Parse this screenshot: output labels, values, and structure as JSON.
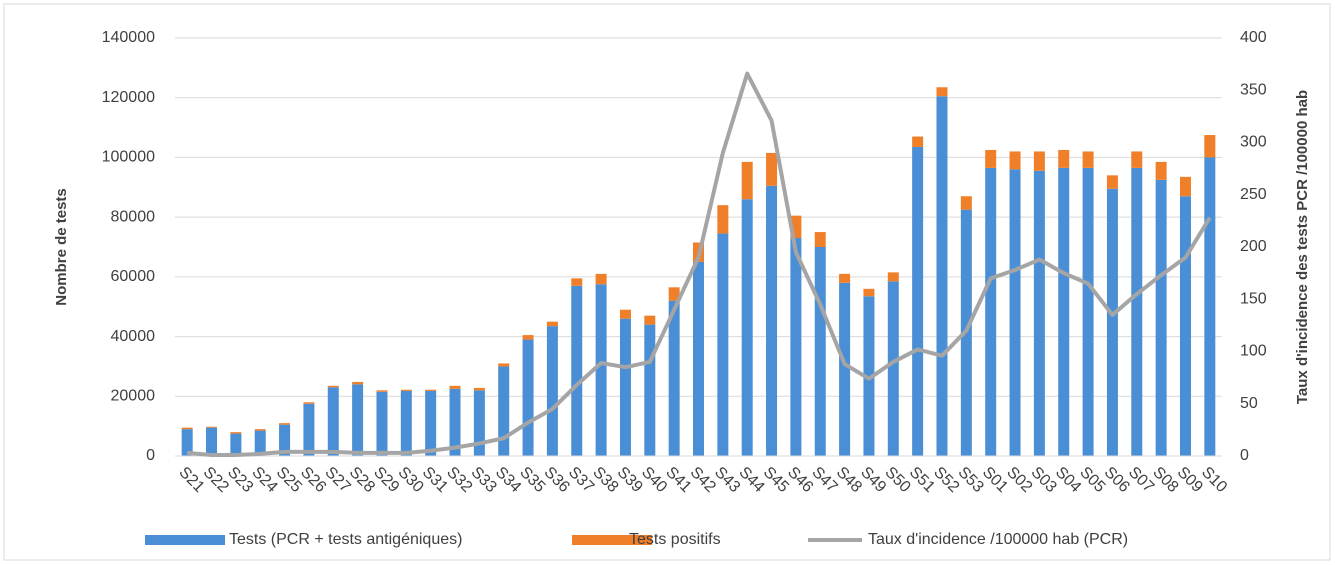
{
  "chart_data": {
    "type": "bar-line",
    "y_label": "Nombre de tests",
    "y2_label": "Taux d'incidence des tests PCR /100000 hab",
    "categories": [
      "S21",
      "S22",
      "S23",
      "S24",
      "S25",
      "S26",
      "S27",
      "S28",
      "S29",
      "S30",
      "S31",
      "S32",
      "S33",
      "S34",
      "S35",
      "S36",
      "S37",
      "S38",
      "S39",
      "S40",
      "S41",
      "S42",
      "S43",
      "S44",
      "S45",
      "S46",
      "S47",
      "S48",
      "S49",
      "S50",
      "S51",
      "S52",
      "S53",
      "S01",
      "S02",
      "S03",
      "S04",
      "S05",
      "S06",
      "S07",
      "S08",
      "S09",
      "S10"
    ],
    "series": [
      {
        "name": "Tests (PCR + tests antigéniques)",
        "color": "#4a8fd6",
        "kind": "bar",
        "values": [
          9000,
          9500,
          7500,
          8500,
          10500,
          17500,
          23000,
          24000,
          21500,
          21800,
          21800,
          22500,
          22000,
          30000,
          39000,
          43500,
          57000,
          57500,
          46000,
          44000,
          52000,
          65000,
          74500,
          86000,
          90500,
          73000,
          70000,
          58000,
          53500,
          58500,
          103500,
          120500,
          82500,
          96500,
          96000,
          95500,
          96500,
          96500,
          89500,
          96500,
          92500,
          87000,
          100000
        ]
      },
      {
        "name": "Tests positifs",
        "color": "#f07f2a",
        "kind": "bar",
        "values": [
          500,
          300,
          500,
          500,
          500,
          500,
          500,
          800,
          500,
          400,
          400,
          1000,
          800,
          1000,
          1500,
          1500,
          2500,
          3500,
          3000,
          3000,
          4500,
          6500,
          9500,
          12500,
          11000,
          7500,
          5000,
          3000,
          2500,
          3000,
          3500,
          3000,
          4500,
          6000,
          6000,
          6500,
          6000,
          5500,
          4500,
          5500,
          6000,
          6500,
          7500
        ]
      },
      {
        "name": "Taux d'incidence /100000 hab (PCR)",
        "color": "#a5a5a5",
        "kind": "line",
        "axis": "y2",
        "values": [
          3,
          1,
          1,
          2,
          4,
          4,
          4,
          3,
          3,
          3,
          5,
          8,
          12,
          17,
          32,
          45,
          68,
          89,
          85,
          90,
          140,
          190,
          290,
          366,
          321,
          195,
          145,
          88,
          74,
          90,
          102,
          96,
          120,
          170,
          178,
          188,
          175,
          165,
          135,
          155,
          173,
          190,
          228
        ]
      }
    ],
    "ylim": [
      0,
      140000
    ],
    "yticks": [
      0,
      20000,
      40000,
      60000,
      80000,
      100000,
      120000,
      140000
    ],
    "y2lim": [
      0,
      400
    ],
    "y2ticks": [
      0,
      50,
      100,
      150,
      200,
      250,
      300,
      350,
      400
    ],
    "grid": true,
    "legend": "bottom"
  }
}
